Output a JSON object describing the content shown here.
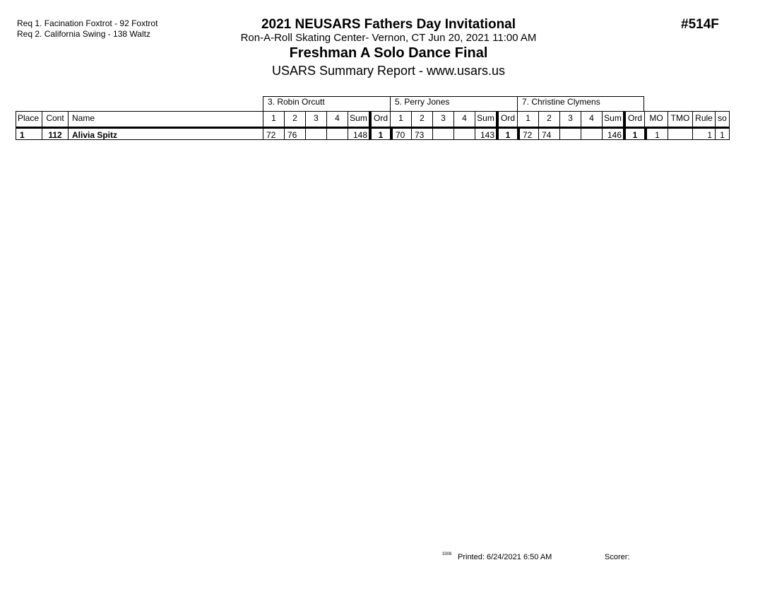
{
  "requirements": [
    "Req  1.  Facination Foxtrot - 92 Foxtrot",
    "Req  2.  California Swing - 138 Waltz"
  ],
  "header": {
    "title": "2021 NEUSARS Fathers Day Invitational",
    "venue": "Ron-A-Roll Skating Center- Vernon, CT  Jun 20, 2021  11:00 AM",
    "event": "Freshman A Solo Dance Final",
    "report": "USARS Summary Report - www.usars.us",
    "event_number": "#514F"
  },
  "judges": [
    "3.  Robin Orcutt",
    "5.  Perry Jones",
    "7.  Christine Clymens"
  ],
  "columns": {
    "place": "Place",
    "cont": "Cont",
    "name": "Name",
    "marks": [
      "1",
      "2",
      "3",
      "4",
      "Sum",
      "Ord"
    ],
    "mo": "MO",
    "tmo": "TMO",
    "rule": "Rule",
    "so": "so"
  },
  "rows": [
    {
      "place": "1",
      "cont": "112",
      "name": "Alivia Spitz",
      "judges": [
        [
          "72",
          "76",
          "",
          "",
          "148",
          "1"
        ],
        [
          "70",
          "73",
          "",
          "",
          "143",
          "1"
        ],
        [
          "72",
          "74",
          "",
          "",
          "146",
          "1"
        ]
      ],
      "mo": "1",
      "tmo": "",
      "rule": "1",
      "so": "1"
    }
  ],
  "footer": {
    "code": "3308",
    "printed": "Printed:  6/24/2021  6:50 AM",
    "scorer": "Scorer:"
  }
}
